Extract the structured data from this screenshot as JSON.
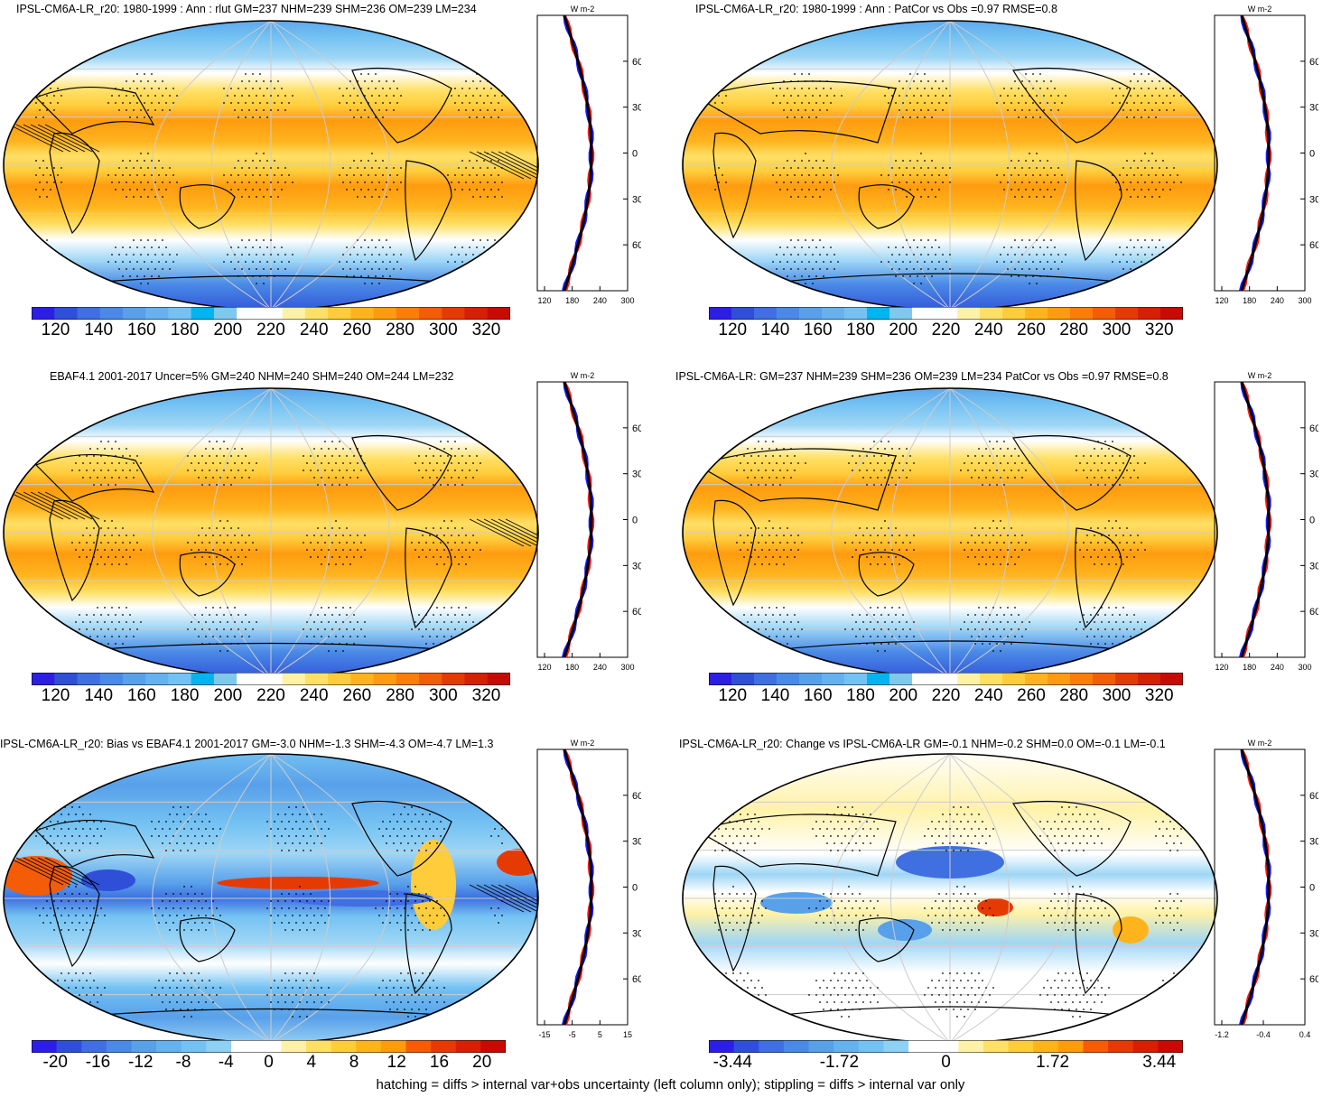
{
  "panels": [
    {
      "title": "IPSL-CM6A-LR_r20: 1980-1999 : Ann : rlut GM=237 NHM=239 SHM=236 OM=239 LM=234",
      "map_style": "olr",
      "center": "atlantic",
      "hatch": true,
      "profile": {
        "units": "W m-2",
        "ticks": [
          "120",
          "180",
          "240",
          "300"
        ],
        "lat_labels": [
          "60N",
          "30N",
          "0",
          "30S",
          "60S"
        ]
      },
      "colorbar": {
        "labels": [
          "120",
          "140",
          "160",
          "180",
          "200",
          "220",
          "240",
          "260",
          "280",
          "300",
          "320"
        ],
        "palette": "olr"
      }
    },
    {
      "title": "IPSL-CM6A-LR_r20: 1980-1999 : Ann : PatCor vs Obs =0.97 RMSE=0.8",
      "map_style": "olr",
      "center": "pacific",
      "hatch": false,
      "profile": {
        "units": "W m-2",
        "ticks": [
          "120",
          "180",
          "240",
          "300"
        ],
        "lat_labels": [
          "60N",
          "30N",
          "0",
          "30S",
          "60S"
        ]
      },
      "colorbar": {
        "labels": [
          "120",
          "140",
          "160",
          "180",
          "200",
          "220",
          "240",
          "260",
          "280",
          "300",
          "320"
        ],
        "palette": "olr"
      }
    },
    {
      "title": "EBAF4.1 2001-2017 Uncer=5% GM=240 NHM=240 SHM=240 OM=244 LM=232",
      "map_style": "olr",
      "center": "atlantic",
      "hatch": true,
      "profile": {
        "units": "W m-2",
        "ticks": [
          "120",
          "180",
          "240",
          "300"
        ],
        "lat_labels": [
          "60N",
          "30N",
          "0",
          "30S",
          "60S"
        ]
      },
      "colorbar": {
        "labels": [
          "120",
          "140",
          "160",
          "180",
          "200",
          "220",
          "240",
          "260",
          "280",
          "300",
          "320"
        ],
        "palette": "olr"
      }
    },
    {
      "title": "IPSL-CM6A-LR: GM=237 NHM=239 SHM=236 OM=239 LM=234 PatCor vs Obs =0.97 RMSE=0.8",
      "map_style": "olr",
      "center": "pacific",
      "hatch": false,
      "profile": {
        "units": "W m-2",
        "ticks": [
          "120",
          "180",
          "240",
          "300"
        ],
        "lat_labels": [
          "60N",
          "30N",
          "0",
          "30S",
          "60S"
        ]
      },
      "colorbar": {
        "labels": [
          "120",
          "140",
          "160",
          "180",
          "200",
          "220",
          "240",
          "260",
          "280",
          "300",
          "320"
        ],
        "palette": "olr"
      }
    },
    {
      "title": "IPSL-CM6A-LR_r20: Bias vs EBAF4.1 2001-2017 GM=-3.0 NHM=-1.3 SHM=-4.3 OM=-4.7 LM=1.3",
      "map_style": "bias",
      "center": "atlantic",
      "hatch": true,
      "profile": {
        "units": "W m-2",
        "ticks": [
          "-15",
          "-5",
          "5",
          "15"
        ],
        "lat_labels": [
          "60N",
          "30N",
          "0",
          "30S",
          "60S"
        ]
      },
      "colorbar": {
        "labels": [
          "-20",
          "-16",
          "-12",
          "-8",
          "-4",
          "0",
          "4",
          "8",
          "12",
          "16",
          "20"
        ],
        "palette": "div"
      }
    },
    {
      "title": "IPSL-CM6A-LR_r20: Change vs IPSL-CM6A-LR GM=-0.1 NHM=-0.2 SHM=0.0 OM=-0.1 LM=-0.1",
      "map_style": "change",
      "center": "pacific",
      "hatch": false,
      "profile": {
        "units": "W m-2",
        "ticks": [
          "-1.2",
          "-0.4",
          "0.4"
        ],
        "lat_labels": [
          "60N",
          "30N",
          "0",
          "30S",
          "60S"
        ]
      },
      "colorbar": {
        "labels": [
          "-3.44",
          "-1.72",
          "0",
          "1.72",
          "3.44"
        ],
        "palette": "div"
      }
    }
  ],
  "palettes": {
    "olr": [
      "#2d1ee6",
      "#2f4fd9",
      "#3f6fe0",
      "#4a8ae6",
      "#58a0ea",
      "#66b2ef",
      "#74c2f3",
      "#00b4f0",
      "#7fc8ee",
      "#ffffff",
      "#ffffff",
      "#fff2a8",
      "#ffe066",
      "#ffcd3c",
      "#ffb41e",
      "#ff9b0f",
      "#fc7d0a",
      "#f45c07",
      "#e63a05",
      "#d71f03",
      "#c80a02"
    ],
    "div": [
      "#2d1ee6",
      "#2f4fd9",
      "#3f6fe0",
      "#4a8ae6",
      "#58a0ea",
      "#66b2ef",
      "#74c2f3",
      "#8fd0f5",
      "#ffffff",
      "#ffffff",
      "#fff2a8",
      "#ffe066",
      "#ffcd3c",
      "#ffb41e",
      "#ff9b0f",
      "#f45c07",
      "#e63a05",
      "#d71f03",
      "#c80a02"
    ]
  },
  "footer": "hatching = diffs > internal var+obs uncertainty (left column only); stippling = diffs > internal var only"
}
